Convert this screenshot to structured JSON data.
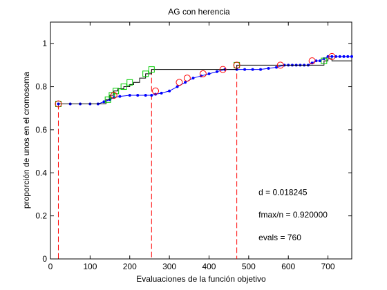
{
  "chart_data": {
    "type": "line",
    "title": "AG con herencia",
    "xlabel": "Evaluaciones de la función objetivo",
    "ylabel": "proporción de unos en el cromosoma",
    "xlim": [
      0,
      760
    ],
    "ylim": [
      0,
      1.1
    ],
    "xticks": [
      0,
      100,
      200,
      300,
      400,
      500,
      600,
      700
    ],
    "yticks": [
      0,
      0.2,
      0.4,
      0.6,
      0.8,
      1
    ],
    "ytick_labels": [
      "0",
      "0.2",
      "0.4",
      "0.6",
      "0.8",
      "1"
    ],
    "grid": false,
    "colors": {
      "avg_line": "#0000ff",
      "max_line": "#000000",
      "green_markers": "#00cc00",
      "red_markers": "#ff0000",
      "dashed": "#ff0000"
    },
    "series": [
      {
        "marker": "dot",
        "line": "solid",
        "color": "#0000ff",
        "x": [
          20,
          50,
          75,
          100,
          120,
          135,
          150,
          160,
          175,
          200,
          220,
          240,
          255,
          265,
          280,
          300,
          320,
          340,
          360,
          380,
          400,
          420,
          440,
          470,
          490,
          510,
          530,
          550,
          570,
          590,
          600,
          610,
          620,
          630,
          640,
          650,
          660,
          670,
          680,
          690,
          700,
          710,
          720,
          730,
          740,
          750,
          760
        ],
        "y": [
          0.72,
          0.72,
          0.72,
          0.72,
          0.72,
          0.73,
          0.74,
          0.75,
          0.755,
          0.76,
          0.76,
          0.76,
          0.76,
          0.765,
          0.77,
          0.78,
          0.8,
          0.82,
          0.84,
          0.85,
          0.86,
          0.87,
          0.88,
          0.88,
          0.88,
          0.88,
          0.88,
          0.885,
          0.89,
          0.9,
          0.9,
          0.9,
          0.9,
          0.9,
          0.9,
          0.9,
          0.91,
          0.92,
          0.92,
          0.93,
          0.94,
          0.94,
          0.94,
          0.94,
          0.94,
          0.94,
          0.94
        ]
      },
      {
        "marker": "none",
        "line": "step",
        "color": "#000000",
        "x": [
          20,
          130,
          140,
          150,
          160,
          170,
          185,
          200,
          210,
          225,
          240,
          255,
          470,
          690,
          700,
          710,
          760
        ],
        "y": [
          0.72,
          0.72,
          0.74,
          0.76,
          0.78,
          0.79,
          0.8,
          0.81,
          0.82,
          0.84,
          0.86,
          0.88,
          0.9,
          0.92,
          0.93,
          0.92,
          0.92
        ]
      },
      {
        "marker": "square",
        "line": "none",
        "color": "#00cc00",
        "x": [
          20,
          145,
          155,
          165,
          185,
          200,
          240,
          255,
          470,
          690
        ],
        "y": [
          0.72,
          0.74,
          0.76,
          0.78,
          0.8,
          0.82,
          0.86,
          0.88,
          0.9,
          0.92
        ]
      },
      {
        "marker": "circle",
        "line": "none",
        "color": "#ff0000",
        "x": [
          20,
          160,
          265,
          325,
          345,
          385,
          435,
          470,
          580,
          660,
          710
        ],
        "y": [
          0.72,
          0.76,
          0.78,
          0.82,
          0.84,
          0.86,
          0.88,
          0.9,
          0.9,
          0.92,
          0.94
        ]
      }
    ],
    "dashed_lines": [
      {
        "x": 20,
        "y": 0.72
      },
      {
        "x": 255,
        "y": 0.88
      },
      {
        "x": 470,
        "y": 0.9
      }
    ],
    "annotations": [
      {
        "text": "d = 0.018245",
        "x": 525,
        "y": 0.31
      },
      {
        "text": "fmax/n = 0.920000",
        "x": 525,
        "y": 0.205
      },
      {
        "text": "evals = 760",
        "x": 525,
        "y": 0.1
      }
    ]
  }
}
